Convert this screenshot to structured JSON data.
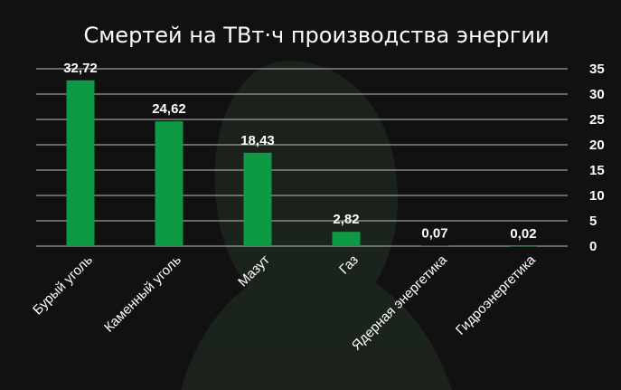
{
  "chart_data": {
    "type": "bar",
    "title": "Смертей на ТВт·ч производства энергии",
    "categories": [
      "Бурый уголь",
      "Каменный уголь",
      "Мазут",
      "Газ",
      "Ядерная энергетика",
      "Гидроэнергетика"
    ],
    "values": [
      32.72,
      24.62,
      18.43,
      2.82,
      0.07,
      0.02
    ],
    "data_labels": [
      "32,72",
      "24,62",
      "18,43",
      "2,82",
      "0,07",
      "0,02"
    ],
    "ylim": [
      0,
      35
    ],
    "y_ticks": [
      "0",
      "5",
      "10",
      "15",
      "20",
      "25",
      "30",
      "35"
    ],
    "y_axis_side": "right",
    "grid": true,
    "bar_color": "#0e9a45",
    "grid_color": "#bfbfbf",
    "background": "#111111"
  }
}
